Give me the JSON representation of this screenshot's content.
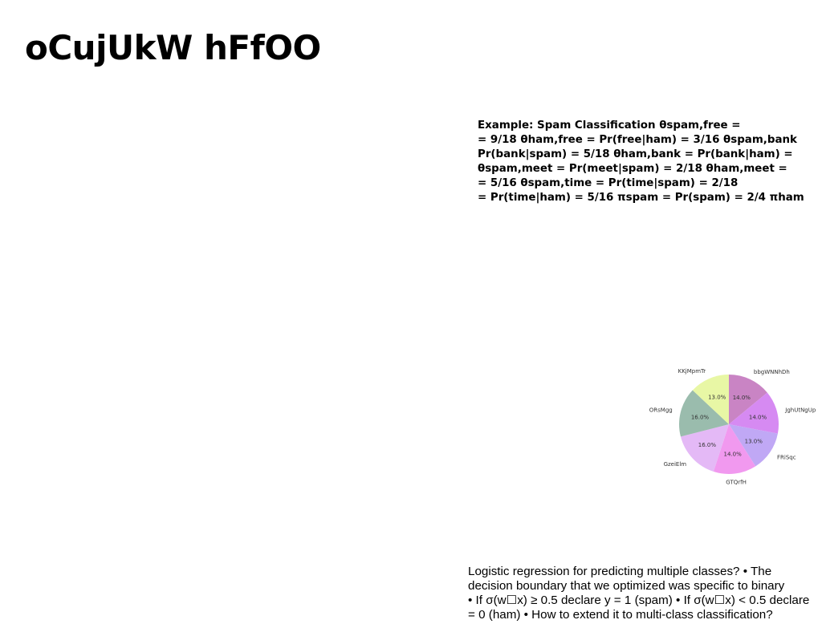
{
  "slide": {
    "title": "oCujUkW hFfOO"
  },
  "example_block": {
    "lines": [
      "Example: Spam Classification θspam,free =",
      "= 9/18 θham,free = Pr(free|ham) = 3/16 θspam,bank",
      "Pr(bank|spam) = 5/18 θham,bank = Pr(bank|ham) =",
      "θspam,meet = Pr(meet|spam) = 2/18 θham,meet =",
      "= 5/16 θspam,time = Pr(time|spam) = 2/18",
      "= Pr(time|ham) = 5/16 πspam = Pr(spam) = 2/4 πham"
    ]
  },
  "body_block": {
    "lines": [
      "Logistic regression for predicting multiple classes? • The",
      "decision boundary that we optimized was specific to binary",
      "• If σ(w☐x) ≥ 0.5 declare y = 1 (spam) • If σ(w☐x) < 0.5 declare",
      "= 0 (ham) • How to extend it to multi-class classification?"
    ]
  },
  "chart_data": {
    "type": "pie",
    "title": "",
    "start_angle_deg": 90,
    "direction": "clockwise",
    "slices": [
      {
        "label": "bbgWNNhDh",
        "value": 14.0,
        "pct_label": "14.0%",
        "color": "#c984c4"
      },
      {
        "label": "JghUtNgUp",
        "value": 14.0,
        "pct_label": "14.0%",
        "color": "#d68af2"
      },
      {
        "label": "FRiSqc",
        "value": 13.0,
        "pct_label": "13.0%",
        "color": "#c0a8f5"
      },
      {
        "label": "GTQrfH",
        "value": 14.0,
        "pct_label": "14.0%",
        "color": "#f199ef"
      },
      {
        "label": "GzeiElm",
        "value": 16.0,
        "pct_label": "16.0%",
        "color": "#e4b9f6"
      },
      {
        "label": "ORsMgg",
        "value": 16.0,
        "pct_label": "16.0%",
        "color": "#9abcad"
      },
      {
        "label": "KKjMpmTr",
        "value": 13.0,
        "pct_label": "13.0%",
        "color": "#e8f7a5"
      }
    ]
  }
}
